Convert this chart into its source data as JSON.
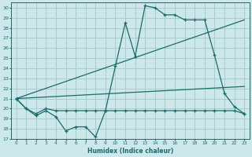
{
  "xlabel": "Humidex (Indice chaleur)",
  "xlim": [
    -0.5,
    23.5
  ],
  "ylim": [
    17,
    30.5
  ],
  "yticks": [
    17,
    18,
    19,
    20,
    21,
    22,
    23,
    24,
    25,
    26,
    27,
    28,
    29,
    30
  ],
  "xticks": [
    0,
    1,
    2,
    3,
    4,
    5,
    6,
    7,
    8,
    9,
    10,
    11,
    12,
    13,
    14,
    15,
    16,
    17,
    18,
    19,
    20,
    21,
    22,
    23
  ],
  "bg_color": "#cce8ea",
  "grid_color": "#aacccc",
  "line_color": "#1a6b6b",
  "line1_x": [
    0,
    1,
    2,
    3,
    4,
    5,
    6,
    7,
    8,
    9,
    10,
    11,
    12,
    13,
    14,
    15,
    16,
    17,
    18,
    19,
    20,
    21,
    22,
    23
  ],
  "line1_y": [
    21.0,
    20.0,
    19.3,
    19.8,
    19.2,
    17.8,
    18.2,
    18.2,
    17.2,
    19.8,
    24.2,
    28.5,
    25.2,
    30.2,
    30.0,
    29.3,
    29.3,
    28.8,
    28.8,
    28.8,
    25.3,
    21.5,
    20.2,
    19.5
  ],
  "line2_x": [
    0,
    1,
    2,
    3,
    4,
    5,
    6,
    7,
    8,
    9,
    10,
    11,
    12,
    13,
    14,
    15,
    16,
    17,
    18,
    19,
    20,
    21,
    22,
    23
  ],
  "line2_y": [
    21.0,
    20.0,
    19.5,
    20.0,
    19.8,
    19.8,
    19.8,
    19.8,
    19.8,
    19.8,
    19.8,
    19.8,
    19.8,
    19.8,
    19.8,
    19.8,
    19.8,
    19.8,
    19.8,
    19.8,
    19.8,
    19.8,
    19.8,
    19.5
  ],
  "line3_x": [
    0,
    23
  ],
  "line3_y": [
    21.0,
    28.8
  ],
  "line4_x": [
    0,
    23
  ],
  "line4_y": [
    21.0,
    22.2
  ]
}
